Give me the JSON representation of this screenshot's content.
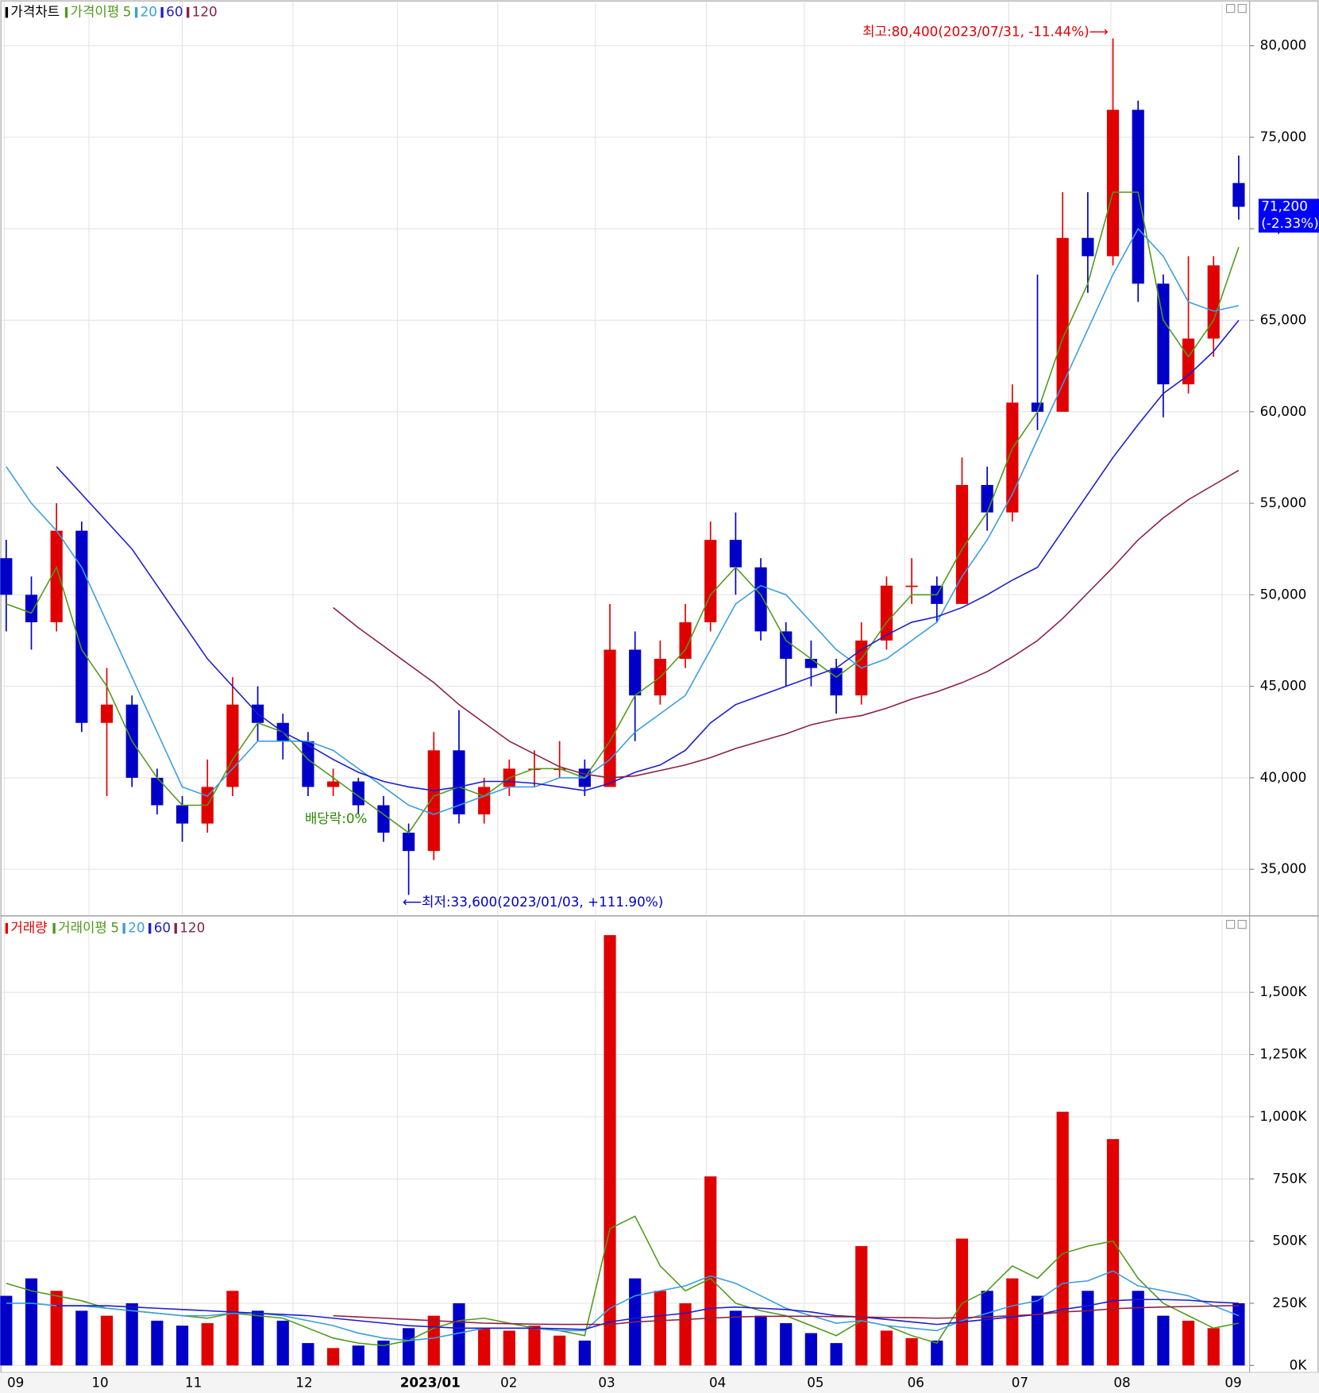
{
  "chart_data": [
    {
      "type": "candlestick",
      "title": "가격차트",
      "title_color": "#000000",
      "ma_label": "가격이평",
      "categories": [
        null,
        null,
        null,
        null,
        null,
        null,
        null,
        null,
        null,
        null,
        null,
        null,
        null,
        null,
        null,
        null,
        null,
        null,
        null,
        null,
        null,
        null,
        null,
        null,
        null,
        null,
        null,
        null,
        null,
        null,
        null,
        null,
        null,
        null,
        null,
        null,
        null,
        null,
        null,
        null,
        null,
        null,
        null,
        null,
        null,
        null,
        null,
        null,
        null,
        null
      ],
      "open": [
        52000,
        50000,
        48500,
        53500,
        43000,
        44000,
        40000,
        38500,
        37500,
        39500,
        44000,
        43000,
        42000,
        39500,
        39800,
        38500,
        37000,
        36000,
        41500,
        38000,
        39500,
        40500,
        40500,
        40500,
        39500,
        47000,
        44500,
        46500,
        48500,
        53000,
        51500,
        48000,
        46500,
        46000,
        44500,
        47500,
        50500,
        50500,
        49500,
        56000,
        54500,
        60500,
        60000,
        69500,
        68500,
        76500,
        67000,
        61500,
        64000,
        72500
      ],
      "high": [
        53000,
        51000,
        55000,
        54000,
        46000,
        44500,
        40500,
        39000,
        41000,
        45500,
        45000,
        43500,
        42500,
        40500,
        40000,
        39000,
        37500,
        42500,
        43700,
        40000,
        41000,
        41500,
        42000,
        41000,
        49500,
        48000,
        47500,
        49500,
        54000,
        54500,
        52000,
        48500,
        47500,
        46500,
        48500,
        51000,
        52000,
        51000,
        57500,
        57000,
        61500,
        67500,
        72000,
        72000,
        80400,
        77000,
        67500,
        68500,
        68500,
        74000
      ],
      "low": [
        48000,
        47000,
        48000,
        42500,
        39000,
        39500,
        38000,
        36500,
        37000,
        39000,
        42000,
        41000,
        39000,
        39000,
        38000,
        36500,
        33600,
        35500,
        37500,
        37500,
        39000,
        39500,
        40000,
        39000,
        39500,
        42000,
        44000,
        46000,
        48000,
        50000,
        47500,
        45000,
        45000,
        43500,
        44000,
        47000,
        49500,
        48500,
        49500,
        53500,
        54000,
        59000,
        60000,
        66500,
        68000,
        66000,
        59700,
        61000,
        63000,
        70500
      ],
      "close": [
        50000,
        48500,
        53500,
        43000,
        44000,
        40000,
        38500,
        37500,
        39500,
        44000,
        43000,
        42000,
        39500,
        39800,
        38500,
        37000,
        36000,
        41500,
        38000,
        39500,
        40500,
        40500,
        40500,
        39500,
        47000,
        44500,
        46500,
        48500,
        53000,
        51500,
        48000,
        46500,
        46000,
        44500,
        47500,
        50500,
        50500,
        49500,
        56000,
        54500,
        60500,
        60000,
        69500,
        68500,
        76500,
        67000,
        61500,
        64000,
        68000,
        71200
      ],
      "up_color": "#e00000",
      "down_color": "#0000c8",
      "series": [
        {
          "name": "5",
          "color": "#4f9a1a",
          "values": [
            49500,
            49000,
            51500,
            47000,
            45000,
            42000,
            40000,
            38500,
            38500,
            41000,
            43000,
            42500,
            41000,
            40000,
            39000,
            38000,
            37000,
            39000,
            39500,
            39000,
            40000,
            40500,
            40500,
            40000,
            42000,
            44500,
            45500,
            47000,
            50000,
            51500,
            50000,
            47500,
            46500,
            45500,
            46500,
            48500,
            50000,
            50000,
            52500,
            54500,
            58000,
            60000,
            64000,
            67000,
            72000,
            72000,
            65000,
            63000,
            65000,
            69000
          ]
        },
        {
          "name": "20",
          "color": "#3a9de0",
          "values": [
            57000,
            55000,
            53500,
            51500,
            48500,
            45500,
            42500,
            39500,
            39000,
            40500,
            42000,
            42000,
            42000,
            41500,
            40500,
            39500,
            38500,
            38000,
            38500,
            39000,
            39500,
            39500,
            40000,
            40000,
            41000,
            42500,
            43500,
            44500,
            47000,
            49500,
            50500,
            50000,
            48500,
            47000,
            46000,
            46500,
            47500,
            48500,
            51000,
            53000,
            55500,
            58500,
            61500,
            64500,
            67500,
            70000,
            68500,
            66000,
            65500,
            65800
          ]
        },
        {
          "name": "60",
          "color": "#1c1cd0",
          "values": [
            null,
            null,
            57000,
            55500,
            54000,
            52500,
            50500,
            48500,
            46500,
            45000,
            43500,
            42500,
            41800,
            41000,
            40300,
            39800,
            39500,
            39300,
            39500,
            39800,
            39800,
            39700,
            39500,
            39300,
            39700,
            40300,
            40700,
            41500,
            43000,
            44000,
            44500,
            45000,
            45500,
            46000,
            47000,
            47800,
            48500,
            48800,
            49300,
            50000,
            50800,
            51500,
            53500,
            55500,
            57500,
            59300,
            61000,
            62000,
            63300,
            65000
          ]
        },
        {
          "name": "120",
          "color": "#8b2040",
          "values": [
            null,
            null,
            null,
            null,
            null,
            null,
            null,
            null,
            null,
            null,
            null,
            null,
            null,
            49300,
            48200,
            47200,
            46200,
            45200,
            44000,
            43000,
            42000,
            41300,
            40600,
            40200,
            40000,
            40100,
            40400,
            40700,
            41100,
            41600,
            42000,
            42400,
            42900,
            43200,
            43400,
            43800,
            44300,
            44700,
            45200,
            45800,
            46600,
            47500,
            48700,
            50100,
            51500,
            53000,
            54200,
            55200,
            56000,
            56800
          ]
        }
      ],
      "ylim": [
        32500,
        82500
      ],
      "yticks": [
        {
          "value": 35000,
          "label": "35,000"
        },
        {
          "value": 40000,
          "label": "40,000"
        },
        {
          "value": 45000,
          "label": "45,000"
        },
        {
          "value": 50000,
          "label": "50,000"
        },
        {
          "value": 55000,
          "label": "55,000"
        },
        {
          "value": 60000,
          "label": "60,000"
        },
        {
          "value": 65000,
          "label": "65,000"
        },
        {
          "value": 70000,
          "label": "70,000"
        },
        {
          "value": 75000,
          "label": "75,000"
        },
        {
          "value": 80000,
          "label": "80,000"
        }
      ],
      "grid": true,
      "last_price": {
        "value": 71200,
        "label": "71,200"
      },
      "last_change": "(-2.33%)",
      "last_color": "#0000ff",
      "annotations": {
        "high": "최고:80,400(2023/07/31, -11.44%)⟶",
        "low": "⟵최저:33,600(2023/01/03, +111.90%)",
        "dividend": "배당락:0%"
      }
    },
    {
      "type": "bar",
      "title": "거래량",
      "title_color": "#e00000",
      "ma_label": "거래이평",
      "values": [
        280000,
        350000,
        300000,
        220000,
        200000,
        250000,
        180000,
        160000,
        170000,
        300000,
        220000,
        180000,
        90000,
        70000,
        80000,
        100000,
        150000,
        200000,
        250000,
        150000,
        140000,
        160000,
        120000,
        100000,
        1730000,
        350000,
        300000,
        250000,
        760000,
        220000,
        200000,
        170000,
        130000,
        90000,
        480000,
        140000,
        110000,
        100000,
        510000,
        300000,
        350000,
        280000,
        1020000,
        300000,
        910000,
        300000,
        200000,
        180000,
        150000,
        250000
      ],
      "up_color": "#e00000",
      "down_color": "#0000c8",
      "series": [
        {
          "name": "5",
          "color": "#4f9a1a",
          "values": [
            330000,
            300000,
            280000,
            260000,
            230000,
            220000,
            210000,
            200000,
            190000,
            210000,
            200000,
            190000,
            150000,
            110000,
            90000,
            80000,
            100000,
            150000,
            180000,
            190000,
            170000,
            150000,
            140000,
            120000,
            550000,
            600000,
            400000,
            300000,
            350000,
            250000,
            220000,
            200000,
            160000,
            120000,
            180000,
            160000,
            120000,
            90000,
            250000,
            300000,
            400000,
            350000,
            450000,
            480000,
            500000,
            350000,
            250000,
            200000,
            150000,
            170000
          ]
        },
        {
          "name": "20",
          "color": "#3a9de0",
          "values": [
            250000,
            250000,
            240000,
            240000,
            230000,
            220000,
            210000,
            200000,
            200000,
            210000,
            210000,
            200000,
            180000,
            160000,
            130000,
            110000,
            100000,
            110000,
            130000,
            150000,
            150000,
            150000,
            140000,
            140000,
            230000,
            280000,
            300000,
            320000,
            360000,
            330000,
            280000,
            230000,
            200000,
            170000,
            180000,
            160000,
            150000,
            140000,
            180000,
            210000,
            240000,
            260000,
            330000,
            340000,
            380000,
            320000,
            300000,
            280000,
            240000,
            200000
          ]
        },
        {
          "name": "60",
          "color": "#1c1cd0",
          "values": [
            null,
            null,
            240000,
            240000,
            240000,
            235000,
            230000,
            225000,
            220000,
            215000,
            210000,
            205000,
            200000,
            190000,
            180000,
            170000,
            160000,
            155000,
            150000,
            150000,
            150000,
            150000,
            148000,
            145000,
            175000,
            190000,
            200000,
            210000,
            230000,
            235000,
            230000,
            225000,
            215000,
            200000,
            195000,
            185000,
            175000,
            165000,
            175000,
            185000,
            195000,
            205000,
            225000,
            240000,
            260000,
            265000,
            265000,
            262000,
            255000,
            250000
          ]
        },
        {
          "name": "120",
          "color": "#8b2040",
          "values": [
            null,
            null,
            null,
            null,
            null,
            null,
            null,
            null,
            null,
            null,
            null,
            null,
            null,
            200000,
            195000,
            190000,
            185000,
            180000,
            175000,
            170000,
            168000,
            166000,
            165000,
            165000,
            165000,
            175000,
            180000,
            185000,
            190000,
            195000,
            197000,
            198000,
            198000,
            196000,
            195000,
            193000,
            192000,
            190000,
            192000,
            195000,
            200000,
            205000,
            215000,
            220000,
            228000,
            232000,
            235000,
            237000,
            239000,
            241000
          ]
        }
      ],
      "ylim": [
        0,
        1800000
      ],
      "yticks": [
        {
          "value": 0,
          "label": "0K"
        },
        {
          "value": 250000,
          "label": "250K"
        },
        {
          "value": 500000,
          "label": "500K"
        },
        {
          "value": 750000,
          "label": "750K"
        },
        {
          "value": 1000000,
          "label": "1,000K"
        },
        {
          "value": 1250000,
          "label": "1,250K"
        },
        {
          "value": 1500000,
          "label": "1,500K"
        }
      ],
      "grid": true,
      "xlim": [
        -0.07,
        49.4
      ],
      "xticks": [
        {
          "value": -0.07,
          "label": "09"
        },
        {
          "value": 3.29,
          "label": "10"
        },
        {
          "value": 7.0,
          "label": "11"
        },
        {
          "value": 11.4,
          "label": "12"
        },
        {
          "value": 15.55,
          "label": "2023/01"
        },
        {
          "value": 19.54,
          "label": "02"
        },
        {
          "value": 23.43,
          "label": "03"
        },
        {
          "value": 27.84,
          "label": "04"
        },
        {
          "value": 31.73,
          "label": "05"
        },
        {
          "value": 35.72,
          "label": "06"
        },
        {
          "value": 39.86,
          "label": "07"
        },
        {
          "value": 43.92,
          "label": "08"
        },
        {
          "value": 48.34,
          "label": "09"
        }
      ]
    }
  ]
}
